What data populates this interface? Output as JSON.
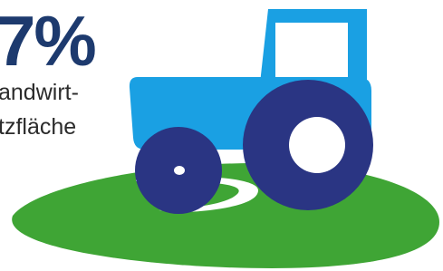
{
  "stat": {
    "value_text": "7%",
    "caption_lines": [
      "andwirt-",
      "tzfläche"
    ]
  }
}
